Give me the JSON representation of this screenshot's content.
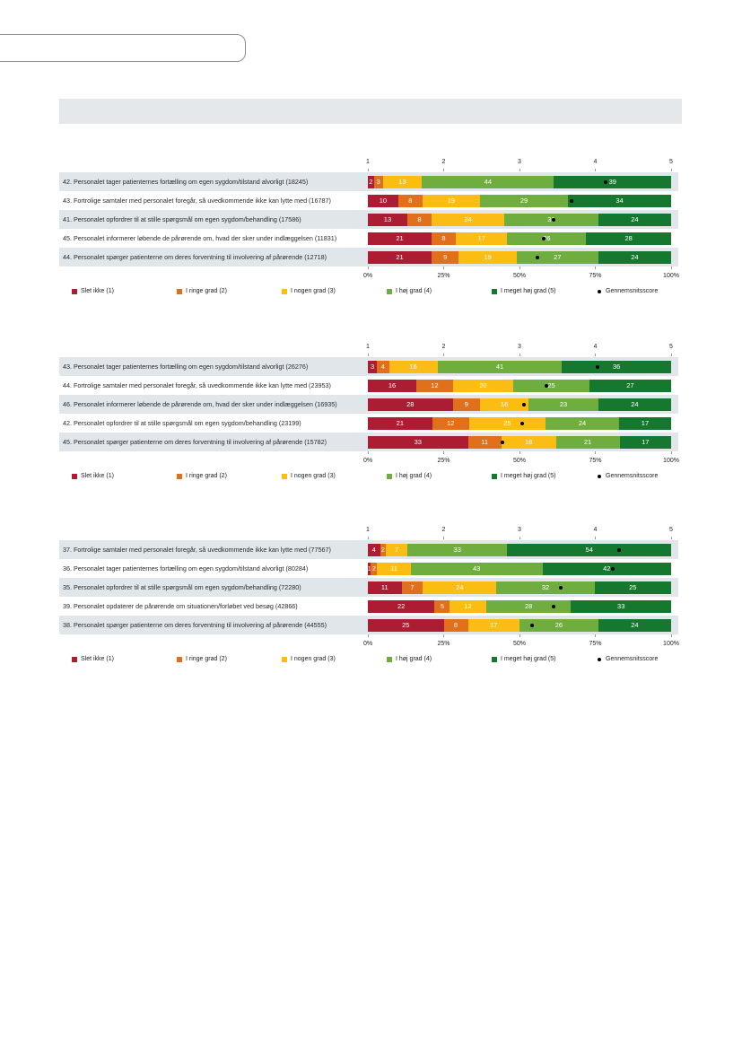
{
  "chart_data": [
    {
      "type": "bar",
      "orientation": "horizontal",
      "stacked": "percent",
      "legend": "bottom",
      "categories": [
        "42. Personalet tager patienternes fortælling om egen sygdom/tilstand alvorligt (18245)",
        "43. Fortrolige samtaler med personalet foregår, så uvedkommende ikke kan lytte med (16787)",
        "41. Personalet opfordrer til at stille spørgsmål om egen sygdom/behandling (17586)",
        "45. Personalet informerer løbende de pårørende om, hvad der sker under indlæggelsen (11831)",
        "44. Personalet spørger patienterne om deres forventning til involvering af pårørende (12718)"
      ],
      "series": [
        {
          "name": "Slet ikke (1)",
          "color": "#ac1c32",
          "values": [
            2,
            10,
            13,
            21,
            21
          ]
        },
        {
          "name": "I ringe grad (2)",
          "color": "#e0701b",
          "values": [
            3,
            8,
            8,
            8,
            9
          ]
        },
        {
          "name": "I nogen grad (3)",
          "color": "#fbbd14",
          "values": [
            13,
            19,
            24,
            17,
            19
          ]
        },
        {
          "name": "I høj grad (4)",
          "color": "#70ad3f",
          "values": [
            44,
            29,
            31,
            26,
            27
          ]
        },
        {
          "name": "I meget høj grad (5)",
          "color": "#16782f",
          "values": [
            39,
            34,
            24,
            28,
            24
          ]
        }
      ],
      "average": {
        "name": "Gennemsnitsscore",
        "values": [
          4.14,
          3.69,
          3.45,
          3.32,
          3.24
        ]
      },
      "score_axis": {
        "range": [
          1,
          5
        ],
        "ticks": [
          "1",
          "2",
          "3",
          "4",
          "5"
        ]
      },
      "percent_axis": {
        "range": [
          0,
          100
        ],
        "ticks": [
          "0%",
          "25%",
          "50%",
          "75%",
          "100%"
        ]
      }
    },
    {
      "type": "bar",
      "orientation": "horizontal",
      "stacked": "percent",
      "legend": "bottom",
      "categories": [
        "43. Personalet tager patienternes fortælling om egen sygdom/tilstand alvorligt (26276)",
        "44. Fortrolige samtaler med personalet foregår, så uvedkommende ikke kan lytte med (23953)",
        "46. Personalet informerer løbende de pårørende om, hvad der sker under indlæggelsen (16935)",
        "42. Personalet opfordrer til at stille spørgsmål om egen sygdom/behandling (23199)",
        "45. Personalet spørger patienterne om deres forventning til involvering af pårørende (15782)"
      ],
      "series": [
        {
          "name": "Slet ikke (1)",
          "color": "#ac1c32",
          "values": [
            3,
            16,
            28,
            21,
            33
          ]
        },
        {
          "name": "I ringe grad (2)",
          "color": "#e0701b",
          "values": [
            4,
            12,
            9,
            12,
            11
          ]
        },
        {
          "name": "I nogen grad (3)",
          "color": "#fbbd14",
          "values": [
            16,
            20,
            16,
            25,
            18
          ]
        },
        {
          "name": "I høj grad (4)",
          "color": "#70ad3f",
          "values": [
            41,
            25,
            23,
            24,
            21
          ]
        },
        {
          "name": "I meget høj grad (5)",
          "color": "#16782f",
          "values": [
            36,
            27,
            24,
            17,
            17
          ]
        }
      ],
      "average": {
        "name": "Gennemsnitsscore",
        "values": [
          4.03,
          3.35,
          3.06,
          3.04,
          2.78
        ]
      },
      "score_axis": {
        "range": [
          1,
          5
        ],
        "ticks": [
          "1",
          "2",
          "3",
          "4",
          "5"
        ]
      },
      "percent_axis": {
        "range": [
          0,
          100
        ],
        "ticks": [
          "0%",
          "25%",
          "50%",
          "75%",
          "100%"
        ]
      }
    },
    {
      "type": "bar",
      "orientation": "horizontal",
      "stacked": "percent",
      "legend": "bottom",
      "categories": [
        "37. Fortrolige samtaler med personalet foregår, så uvedkommende ikke kan lytte med (77567)",
        "36. Personalet tager patienternes fortælling om egen sygdom/tilstand alvorligt (80284)",
        "35. Personalet opfordrer til at stille spørgsmål om egen sygdom/behandling (72280)",
        "39. Personalet opdaterer de pårørende om situationen/forløbet ved besøg (42866)",
        "38. Personalet spørger patienterne om deres forventning til involvering af pårørende (44555)"
      ],
      "series": [
        {
          "name": "Slet ikke (1)",
          "color": "#ac1c32",
          "values": [
            4,
            1,
            11,
            22,
            25
          ]
        },
        {
          "name": "I ringe grad (2)",
          "color": "#e0701b",
          "values": [
            2,
            2,
            7,
            5,
            8
          ]
        },
        {
          "name": "I nogen grad (3)",
          "color": "#fbbd14",
          "values": [
            7,
            11,
            24,
            12,
            17
          ]
        },
        {
          "name": "I høj grad (4)",
          "color": "#70ad3f",
          "values": [
            33,
            43,
            32,
            28,
            26
          ]
        },
        {
          "name": "I meget høj grad (5)",
          "color": "#16782f",
          "values": [
            54,
            42,
            25,
            33,
            24
          ]
        }
      ],
      "average": {
        "name": "Gennemsnitsscore",
        "values": [
          4.31,
          4.23,
          3.54,
          3.45,
          3.16
        ]
      },
      "score_axis": {
        "range": [
          1,
          5
        ],
        "ticks": [
          "1",
          "2",
          "3",
          "4",
          "5"
        ]
      },
      "percent_axis": {
        "range": [
          0,
          100
        ],
        "ticks": [
          "0%",
          "25%",
          "50%",
          "75%",
          "100%"
        ]
      }
    }
  ]
}
